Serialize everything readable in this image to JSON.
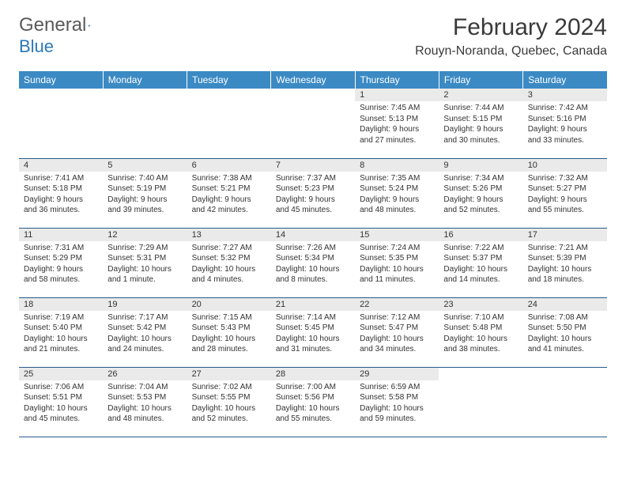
{
  "logo": {
    "word1": "General",
    "word2": "Blue"
  },
  "title": "February 2024",
  "location": "Rouyn-Noranda, Quebec, Canada",
  "colors": {
    "header_bg": "#3b8ac4",
    "header_text": "#ffffff",
    "daynum_bg": "#eaeaea",
    "border": "#2a5a8a",
    "logo_gray": "#5a5a5a",
    "logo_blue": "#2a7ab8",
    "text": "#333333"
  },
  "weekdays": [
    "Sunday",
    "Monday",
    "Tuesday",
    "Wednesday",
    "Thursday",
    "Friday",
    "Saturday"
  ],
  "weeks": [
    [
      null,
      null,
      null,
      null,
      {
        "n": "1",
        "sr": "Sunrise: 7:45 AM",
        "ss": "Sunset: 5:13 PM",
        "d1": "Daylight: 9 hours",
        "d2": "and 27 minutes."
      },
      {
        "n": "2",
        "sr": "Sunrise: 7:44 AM",
        "ss": "Sunset: 5:15 PM",
        "d1": "Daylight: 9 hours",
        "d2": "and 30 minutes."
      },
      {
        "n": "3",
        "sr": "Sunrise: 7:42 AM",
        "ss": "Sunset: 5:16 PM",
        "d1": "Daylight: 9 hours",
        "d2": "and 33 minutes."
      }
    ],
    [
      {
        "n": "4",
        "sr": "Sunrise: 7:41 AM",
        "ss": "Sunset: 5:18 PM",
        "d1": "Daylight: 9 hours",
        "d2": "and 36 minutes."
      },
      {
        "n": "5",
        "sr": "Sunrise: 7:40 AM",
        "ss": "Sunset: 5:19 PM",
        "d1": "Daylight: 9 hours",
        "d2": "and 39 minutes."
      },
      {
        "n": "6",
        "sr": "Sunrise: 7:38 AM",
        "ss": "Sunset: 5:21 PM",
        "d1": "Daylight: 9 hours",
        "d2": "and 42 minutes."
      },
      {
        "n": "7",
        "sr": "Sunrise: 7:37 AM",
        "ss": "Sunset: 5:23 PM",
        "d1": "Daylight: 9 hours",
        "d2": "and 45 minutes."
      },
      {
        "n": "8",
        "sr": "Sunrise: 7:35 AM",
        "ss": "Sunset: 5:24 PM",
        "d1": "Daylight: 9 hours",
        "d2": "and 48 minutes."
      },
      {
        "n": "9",
        "sr": "Sunrise: 7:34 AM",
        "ss": "Sunset: 5:26 PM",
        "d1": "Daylight: 9 hours",
        "d2": "and 52 minutes."
      },
      {
        "n": "10",
        "sr": "Sunrise: 7:32 AM",
        "ss": "Sunset: 5:27 PM",
        "d1": "Daylight: 9 hours",
        "d2": "and 55 minutes."
      }
    ],
    [
      {
        "n": "11",
        "sr": "Sunrise: 7:31 AM",
        "ss": "Sunset: 5:29 PM",
        "d1": "Daylight: 9 hours",
        "d2": "and 58 minutes."
      },
      {
        "n": "12",
        "sr": "Sunrise: 7:29 AM",
        "ss": "Sunset: 5:31 PM",
        "d1": "Daylight: 10 hours",
        "d2": "and 1 minute."
      },
      {
        "n": "13",
        "sr": "Sunrise: 7:27 AM",
        "ss": "Sunset: 5:32 PM",
        "d1": "Daylight: 10 hours",
        "d2": "and 4 minutes."
      },
      {
        "n": "14",
        "sr": "Sunrise: 7:26 AM",
        "ss": "Sunset: 5:34 PM",
        "d1": "Daylight: 10 hours",
        "d2": "and 8 minutes."
      },
      {
        "n": "15",
        "sr": "Sunrise: 7:24 AM",
        "ss": "Sunset: 5:35 PM",
        "d1": "Daylight: 10 hours",
        "d2": "and 11 minutes."
      },
      {
        "n": "16",
        "sr": "Sunrise: 7:22 AM",
        "ss": "Sunset: 5:37 PM",
        "d1": "Daylight: 10 hours",
        "d2": "and 14 minutes."
      },
      {
        "n": "17",
        "sr": "Sunrise: 7:21 AM",
        "ss": "Sunset: 5:39 PM",
        "d1": "Daylight: 10 hours",
        "d2": "and 18 minutes."
      }
    ],
    [
      {
        "n": "18",
        "sr": "Sunrise: 7:19 AM",
        "ss": "Sunset: 5:40 PM",
        "d1": "Daylight: 10 hours",
        "d2": "and 21 minutes."
      },
      {
        "n": "19",
        "sr": "Sunrise: 7:17 AM",
        "ss": "Sunset: 5:42 PM",
        "d1": "Daylight: 10 hours",
        "d2": "and 24 minutes."
      },
      {
        "n": "20",
        "sr": "Sunrise: 7:15 AM",
        "ss": "Sunset: 5:43 PM",
        "d1": "Daylight: 10 hours",
        "d2": "and 28 minutes."
      },
      {
        "n": "21",
        "sr": "Sunrise: 7:14 AM",
        "ss": "Sunset: 5:45 PM",
        "d1": "Daylight: 10 hours",
        "d2": "and 31 minutes."
      },
      {
        "n": "22",
        "sr": "Sunrise: 7:12 AM",
        "ss": "Sunset: 5:47 PM",
        "d1": "Daylight: 10 hours",
        "d2": "and 34 minutes."
      },
      {
        "n": "23",
        "sr": "Sunrise: 7:10 AM",
        "ss": "Sunset: 5:48 PM",
        "d1": "Daylight: 10 hours",
        "d2": "and 38 minutes."
      },
      {
        "n": "24",
        "sr": "Sunrise: 7:08 AM",
        "ss": "Sunset: 5:50 PM",
        "d1": "Daylight: 10 hours",
        "d2": "and 41 minutes."
      }
    ],
    [
      {
        "n": "25",
        "sr": "Sunrise: 7:06 AM",
        "ss": "Sunset: 5:51 PM",
        "d1": "Daylight: 10 hours",
        "d2": "and 45 minutes."
      },
      {
        "n": "26",
        "sr": "Sunrise: 7:04 AM",
        "ss": "Sunset: 5:53 PM",
        "d1": "Daylight: 10 hours",
        "d2": "and 48 minutes."
      },
      {
        "n": "27",
        "sr": "Sunrise: 7:02 AM",
        "ss": "Sunset: 5:55 PM",
        "d1": "Daylight: 10 hours",
        "d2": "and 52 minutes."
      },
      {
        "n": "28",
        "sr": "Sunrise: 7:00 AM",
        "ss": "Sunset: 5:56 PM",
        "d1": "Daylight: 10 hours",
        "d2": "and 55 minutes."
      },
      {
        "n": "29",
        "sr": "Sunrise: 6:59 AM",
        "ss": "Sunset: 5:58 PM",
        "d1": "Daylight: 10 hours",
        "d2": "and 59 minutes."
      },
      null,
      null
    ]
  ]
}
